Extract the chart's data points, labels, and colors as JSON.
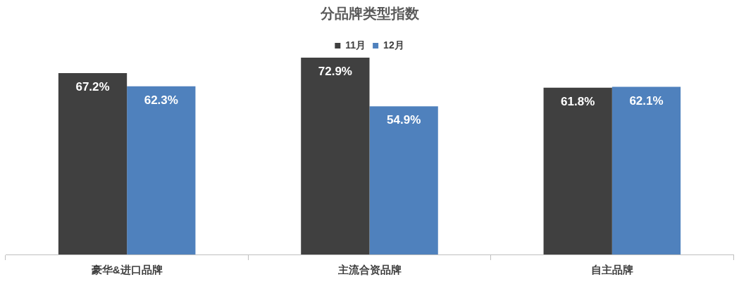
{
  "chart_data": {
    "type": "bar",
    "title": "分品牌类型指数",
    "categories": [
      "豪华&进口品牌",
      "主流合资品牌",
      "自主品牌"
    ],
    "series": [
      {
        "name": "11月",
        "color": "#404040",
        "values": [
          67.2,
          72.9,
          61.8
        ],
        "value_labels": [
          "67.2%",
          "72.9%",
          "61.8%"
        ]
      },
      {
        "name": "12月",
        "color": "#4f81bd",
        "values": [
          62.3,
          54.9,
          62.1
        ],
        "value_labels": [
          "62.3%",
          "54.9%",
          "62.1%"
        ]
      }
    ],
    "legend": "top",
    "grid": false
  }
}
